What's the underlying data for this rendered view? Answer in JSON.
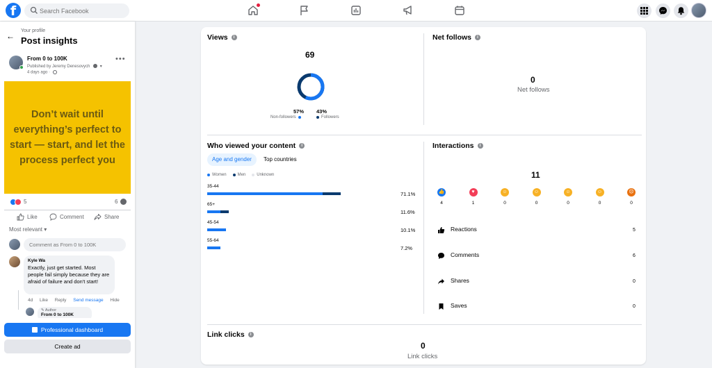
{
  "topbar": {
    "search_placeholder": "Search Facebook",
    "nav": [
      "home-icon",
      "flag-icon",
      "dashboard-icon",
      "megaphone-icon",
      "calendar-icon"
    ],
    "home_has_notification": true
  },
  "left": {
    "your_profile": "Your profile",
    "title": "Post insights",
    "post": {
      "title": "From 0 to 100K",
      "published_by": "Published by Jeremy Denesovych",
      "time": "4 days ago ·",
      "quote": "Don’t wait until everything’s perfect to start — start, and let the process perfect you",
      "reaction_count": "5",
      "share_count": "6",
      "actions": {
        "like": "Like",
        "comment": "Comment",
        "share": "Share"
      },
      "sort_label": "Most relevant",
      "comment_placeholder": "Comment as From 0 to 100K",
      "comments": [
        {
          "name": "Kyle Wa",
          "text": "Exactly, just get started. Most people fail simply because they are afraid of failure and don't start!",
          "time": "4d",
          "like": "Like",
          "reply": "Reply",
          "send": "Send message",
          "hide": "Hide"
        }
      ],
      "reply": {
        "author_label": "Author",
        "name": "From 0 to 100K"
      }
    },
    "buttons": {
      "pro": "Professional dashboard",
      "ad": "Create ad"
    }
  },
  "views": {
    "title": "Views",
    "total": "69",
    "non_followers_pct": "57%",
    "followers_pct": "43%",
    "non_followers_label": "Non-followers",
    "followers_label": "Followers",
    "non_followers_value": 57,
    "followers_value": 43
  },
  "net_follows": {
    "title": "Net follows",
    "value": "0",
    "label": "Net follows"
  },
  "who_viewed": {
    "title": "Who viewed your content",
    "tabs": [
      "Age and gender",
      "Top countries"
    ],
    "legend": [
      "Women",
      "Men",
      "Unknown"
    ],
    "rows": [
      {
        "age": "35-44",
        "pct": "71.1%",
        "women": 61.5,
        "men": 9.6
      },
      {
        "age": "65+",
        "pct": "11.6%",
        "women": 7.0,
        "men": 4.6
      },
      {
        "age": "45-54",
        "pct": "10.1%",
        "women": 10.1,
        "men": 0
      },
      {
        "age": "55-64",
        "pct": "7.2%",
        "women": 7.2,
        "men": 0
      }
    ]
  },
  "interactions": {
    "title": "Interactions",
    "total": "11",
    "reactions": [
      {
        "name": "like-reaction",
        "count": "4",
        "color": "#1877f2"
      },
      {
        "name": "love-reaction",
        "count": "1",
        "color": "#f33e58"
      },
      {
        "name": "care-reaction",
        "count": "0",
        "color": "#f7b125"
      },
      {
        "name": "haha-reaction",
        "count": "0",
        "color": "#f7b125"
      },
      {
        "name": "wow-reaction",
        "count": "0",
        "color": "#f7b125"
      },
      {
        "name": "sad-reaction",
        "count": "0",
        "color": "#f7b125"
      },
      {
        "name": "angry-reaction",
        "count": "0",
        "color": "#e9710f"
      }
    ],
    "rows": [
      {
        "label": "Reactions",
        "value": "5",
        "icon": "thumbs-up-icon"
      },
      {
        "label": "Comments",
        "value": "6",
        "icon": "comment-icon"
      },
      {
        "label": "Shares",
        "value": "0",
        "icon": "share-icon"
      },
      {
        "label": "Saves",
        "value": "0",
        "icon": "bookmark-icon"
      }
    ]
  },
  "link_clicks": {
    "title": "Link clicks",
    "value": "0",
    "label": "Link clicks"
  },
  "colors": {
    "accent": "#1877f2",
    "dark_blue": "#0a3a6e",
    "quote_bg": "#f5c200"
  }
}
